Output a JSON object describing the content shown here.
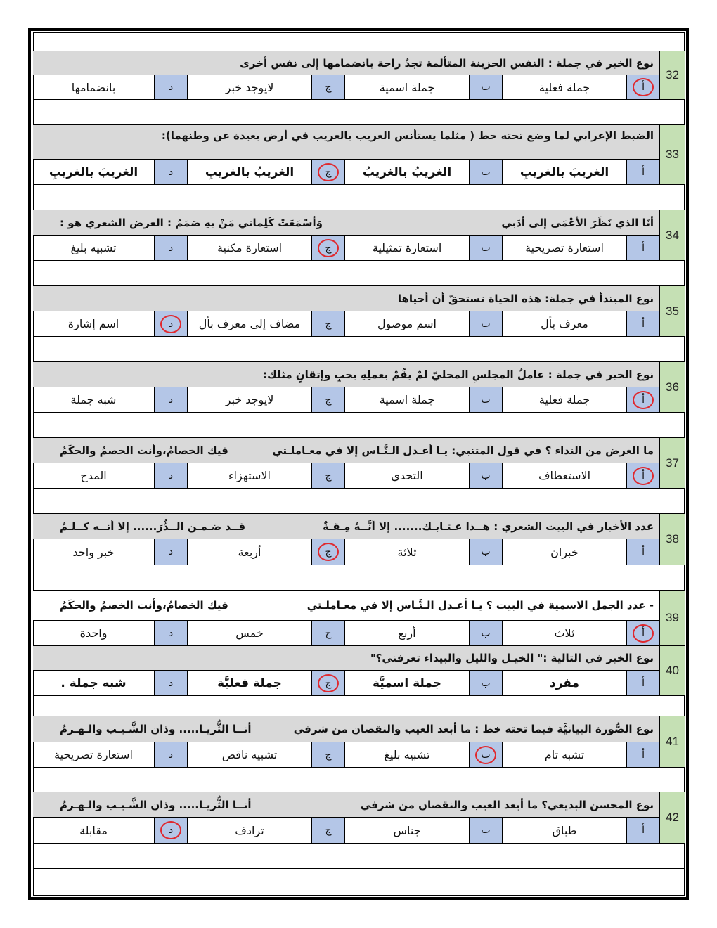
{
  "colors": {
    "question_bg": "#d9d9d9",
    "letter_bg": "#b4c6e7",
    "number_bg": "#c5e0b4",
    "answer_circle": "#e0282e"
  },
  "letters": [
    "أ",
    "ب",
    "ج",
    "د"
  ],
  "questions": [
    {
      "number": "32",
      "parts": [
        "نوع الخبر في جملة : النفس الحزينة المتألمة تجدُ راحة بانضمامها إلى نفس أخرى"
      ],
      "options": [
        "جملة فعلية",
        "جملة اسمية",
        "لايوجد خبر",
        "بانضمامها"
      ],
      "answer": 0
    },
    {
      "number": "33",
      "parts": [
        "الضبط الإعرابي لما وضع تحته خط ( مثلما يستأنس الغريب بالغريب في أرض بعيدة عن وطنهما):"
      ],
      "options": [
        "الغريبَ بالغريبِ",
        "الغريبُ بالغريبُ",
        "الغريبُ بالغريبِ",
        "الغريبَ بالغريبِ"
      ],
      "answer": 2,
      "bold_options": true
    },
    {
      "number": "34",
      "parts": [
        "أنَا الذي نَظَرَ الأعْمَى إلى أدَبي",
        "وَأسْمَعَتْ كَلِماتي مَنْ بهِ صَمَمُ   :   الغرض الشعري هو :"
      ],
      "options": [
        "استعارة تصريحية",
        "استعارة تمثيلية",
        "استعارة مكنية",
        "تشبيه بليغ"
      ],
      "answer": 2
    },
    {
      "number": "35",
      "parts": [
        "نوع المبتدأ في جملة:  هذه الحياة تستحقّ أن أحياها"
      ],
      "options": [
        "معرف بأل",
        "اسم موصول",
        "مضاف إلى معرف بأل",
        "اسم إشارة"
      ],
      "answer": 3
    },
    {
      "number": "36",
      "parts": [
        "نوع الخبر في جملة : عاملُ المجلسِ المحليّ لمْ يقُمْ بعملِهِ بحبٍ وإتقانٍ مثلك:"
      ],
      "options": [
        "جملة فعلية",
        "جملة اسمية",
        "لايوجد خبر",
        "شبه جملة"
      ],
      "answer": 0
    },
    {
      "number": "37",
      "parts": [
        "ما الغرض من النداء ؟ في قول المتنبي: يـا أعـدل الـنَّـاس إلا في معـاملـتي",
        "فيك الخصامُ،وأنت الخصمُ والحكَمُ"
      ],
      "options": [
        "الاستعطاف",
        "التحدي",
        "الاستهزاء",
        "المدح"
      ],
      "answer": 0
    },
    {
      "number": "38",
      "parts": [
        "عدد الأخبار في البيت الشعري : هــذا عـتـابـك....... إلا أنَّــهُ مِـقـةٌ",
        "قــد ضـمـن الــدُّرَ...... إلا أنــه كــلـمُ"
      ],
      "options": [
        "خبران",
        "ثلاثة",
        "أربعة",
        "خبر واحد"
      ],
      "answer": 2
    },
    {
      "number": "39",
      "parts": [
        "- عدد الجمل الاسمية في البيت ؟ يـا أعـدل الـنَّـاس إلا في معـاملـتي",
        "فيك الخصامُ،وأنت الخصمُ والحكَمُ"
      ],
      "options": [
        "ثلاث",
        "أربع",
        "خمس",
        "واحدة"
      ],
      "answer": 0
    },
    {
      "number": "40",
      "parts": [
        "نوع الخبر في التالية :\" الخيـل والليل والبيداء تعرفني؟\""
      ],
      "options": [
        "مفرد",
        "جملة اسميَّة",
        "جملة فعليَّة",
        "شبه جملة ."
      ],
      "answer": 2,
      "bold_options": true
    },
    {
      "number": "41",
      "parts": [
        "نوع الصُّورة البيانيَّة فيما تحته خط  :  ما أبعد العيب والنقصان من شرفي",
        "أنــا الثُّريـا..... وذان الشَّـيـب والـهـرمُ"
      ],
      "options": [
        "تشبه تام",
        "تشبيه بليغ",
        "تشبيه ناقص",
        "استعارة تصريحية"
      ],
      "answer": 1
    },
    {
      "number": "42",
      "parts": [
        "نوع المحسن البديعي؟ ما أبعد العيب والنقصان من شرفي",
        "أنــا الثُّريـا..... وذان الشَّـيـب   والـهـرمُ"
      ],
      "options": [
        "طباق",
        "جناس",
        "ترادف",
        "مقابلة"
      ],
      "answer": 3
    }
  ]
}
